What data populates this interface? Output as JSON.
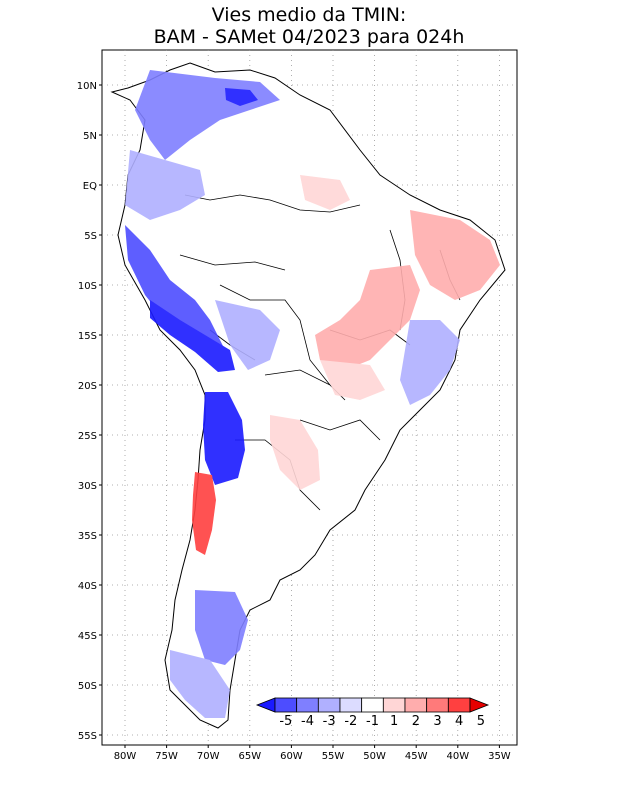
{
  "title": {
    "line1": "Vies medio da TMIN:",
    "line2": "BAM - SAMet 04/2023  para 024h"
  },
  "map": {
    "region": "South America",
    "lat_ticks": [
      "10N",
      "5N",
      "EQ",
      "5S",
      "10S",
      "15S",
      "20S",
      "25S",
      "30S",
      "35S",
      "40S",
      "45S",
      "50S",
      "55S"
    ],
    "lon_ticks": [
      "80W",
      "75W",
      "70W",
      "65W",
      "60W",
      "55W",
      "50W",
      "45W",
      "40W",
      "35W"
    ],
    "grid": "dotted"
  },
  "colorbar": {
    "labels": [
      "-5",
      "-4",
      "-3",
      "-2",
      "-1",
      "1",
      "2",
      "3",
      "4",
      "5"
    ],
    "colors": [
      "#1a1aff",
      "#4d4dff",
      "#7f7fff",
      "#b0b0ff",
      "#dcdcff",
      "#ffffff",
      "#ffd6d6",
      "#ffadad",
      "#ff7a7a",
      "#ff4040",
      "#e60000"
    ],
    "open_ends": true
  }
}
